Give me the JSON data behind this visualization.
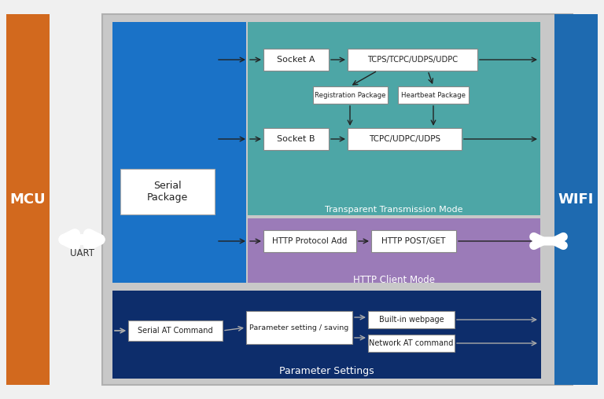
{
  "fig_bg": "#f0f0f0",
  "grey_bg": "#c8c8c8",
  "mcu_color": "#d2691e",
  "wifi_color": "#1e6ab0",
  "blue_panel_color": "#1a72c7",
  "teal_panel_color": "#4da6a6",
  "purple_panel_color": "#9b7bb8",
  "dark_blue_color": "#0d2d6b",
  "mcu_label": "MCU",
  "wifi_label": "WIFI",
  "uart_label": "UART",
  "serial_package_label": "Serial\nPackage",
  "socket_a_label": "Socket A",
  "tcps_label": "TCPS/TCPC/UDPS/UDPC",
  "reg_pkg_label": "Registration Package",
  "heartbeat_label": "Heartbeat Package",
  "socket_b_label": "Socket B",
  "tcpc_label": "TCPC/UDPC/UDPS",
  "transparent_label": "Transparent Transmission Mode",
  "http_proto_label": "HTTP Protocol Add",
  "http_post_label": "HTTP POST/GET",
  "http_client_label": "HTTP Client Mode",
  "serial_at_label": "Serial AT Command",
  "param_setting_label": "Parameter setting / saving",
  "builtin_web_label": "Built-in webpage",
  "network_at_label": "Network AT command",
  "param_settings_label": "Parameter Settings"
}
